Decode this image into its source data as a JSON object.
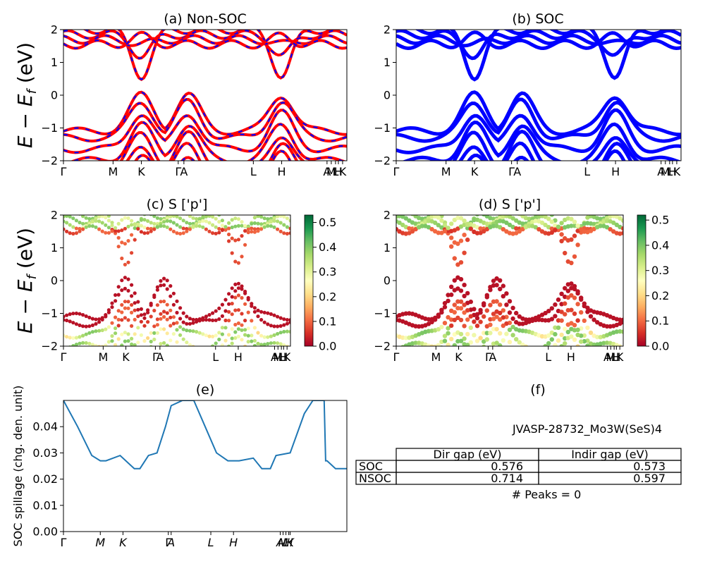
{
  "colors": {
    "nonsoc_red": "#ff0000",
    "nonsoc_blue": "#0000ff",
    "soc_blue": "#0000ff",
    "spillage_line": "#1f77b4"
  },
  "chart_data": [
    {
      "id": "a",
      "type": "line",
      "title": "(a) Non-SOC",
      "ylabel": "E − E_f (eV)",
      "ylim": [
        -2,
        2
      ],
      "yticks": [
        "2",
        "1",
        "0",
        "−1",
        "−2"
      ],
      "kpath_labels": [
        "Γ",
        "M",
        "K",
        "Γ",
        "A",
        "L",
        "H",
        "A",
        "M",
        "L",
        "H",
        "K"
      ],
      "series": [
        {
          "color": "#ff0000",
          "style": "solid"
        },
        {
          "color": "#0000ff",
          "style": "dashed"
        }
      ],
      "band_sets": {
        "conduction_minima": [
          0.6,
          1.2,
          1.55,
          1.8
        ],
        "valence_maxima": [
          0.0,
          -0.2,
          -0.55,
          -0.9,
          -1.2,
          -1.5,
          -1.8
        ]
      }
    },
    {
      "id": "b",
      "type": "line",
      "title": "(b) SOC",
      "ylim": [
        -2,
        2
      ],
      "yticks": [
        "2",
        "1",
        "0",
        "−1",
        "−2"
      ],
      "kpath_labels": [
        "Γ",
        "M",
        "K",
        "Γ",
        "A",
        "L",
        "H",
        "A",
        "M",
        "L",
        "H",
        "K"
      ],
      "series": [
        {
          "color": "#0000ff",
          "style": "solid"
        }
      ]
    },
    {
      "id": "c",
      "type": "scatter",
      "title": "(c)  S ['p']",
      "ylabel": "E − E_f (eV)",
      "ylim": [
        -2,
        2
      ],
      "yticks": [
        "2",
        "1",
        "0",
        "−1",
        "−2"
      ],
      "kpath_labels": [
        "Γ",
        "M",
        "K",
        "Γ",
        "A",
        "L",
        "H",
        "A",
        "M",
        "L",
        "H",
        "K"
      ],
      "colorbar": {
        "colormap": "RdYlGn",
        "range": [
          0.0,
          0.53
        ],
        "ticks": [
          "0.5",
          "0.4",
          "0.3",
          "0.2",
          "0.1",
          "0.0"
        ]
      }
    },
    {
      "id": "d",
      "type": "scatter",
      "title": "(d) S ['p']",
      "ylim": [
        -2,
        2
      ],
      "yticks": [
        "2",
        "1",
        "0",
        "−1",
        "−2"
      ],
      "kpath_labels": [
        "Γ",
        "M",
        "K",
        "Γ",
        "A",
        "L",
        "H",
        "A",
        "M",
        "L",
        "H",
        "K"
      ],
      "colorbar": {
        "colormap": "RdYlGn",
        "range": [
          0.0,
          0.52
        ],
        "ticks": [
          "0.5",
          "0.4",
          "0.3",
          "0.2",
          "0.1",
          "0.0"
        ]
      }
    },
    {
      "id": "e",
      "type": "line",
      "title": "(e)",
      "ylabel": "SOC spillage (chg. den. unit)",
      "ylim": [
        0.0,
        0.05
      ],
      "yticks": [
        "0.04",
        "0.03",
        "0.02",
        "0.01",
        "0.00"
      ],
      "kpath_labels": [
        "Γ",
        "M",
        "K",
        "Γ",
        "A",
        "L",
        "H",
        "A",
        "M",
        "L",
        "H",
        "K"
      ],
      "x": [
        0,
        0.05,
        0.1,
        0.13,
        0.15,
        0.2,
        0.25,
        0.27,
        0.3,
        0.33,
        0.36,
        0.38,
        0.42,
        0.46,
        0.5,
        0.54,
        0.58,
        0.62,
        0.67,
        0.7,
        0.73,
        0.75,
        0.8,
        0.85,
        0.88,
        0.92,
        0.925,
        0.93,
        0.96,
        1.0
      ],
      "values": [
        0.05,
        0.04,
        0.029,
        0.027,
        0.027,
        0.029,
        0.024,
        0.024,
        0.029,
        0.03,
        0.04,
        0.048,
        0.05,
        0.05,
        0.04,
        0.03,
        0.027,
        0.027,
        0.028,
        0.024,
        0.024,
        0.029,
        0.03,
        0.045,
        0.05,
        0.05,
        0.027,
        0.027,
        0.024,
        0.024
      ]
    }
  ],
  "panel_f": {
    "title": "(f)",
    "material_id": "JVASP-28732_Mo3W(SeS)4",
    "table": {
      "headers": [
        "Dir gap (eV)",
        "Indir gap (eV)"
      ],
      "rows": [
        {
          "label": "SOC",
          "values": [
            "0.576",
            "0.573"
          ]
        },
        {
          "label": "NSOC",
          "values": [
            "0.714",
            "0.597"
          ]
        }
      ]
    },
    "peaks": "# Peaks = 0"
  }
}
